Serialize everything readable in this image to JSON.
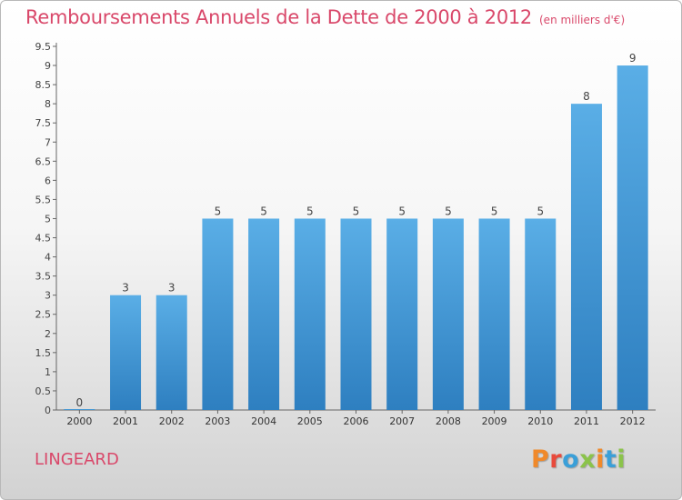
{
  "header": {
    "title": "Remboursements Annuels de la Dette de 2000 à 2012",
    "subtitle": "(en milliers d'€)"
  },
  "footer": {
    "commune": "LINGEARD",
    "logo": "Proxiti"
  },
  "colors": {
    "title": "#d9486a",
    "bar_top": "#5aaee6",
    "bar_bottom": "#2e7fc0",
    "logo_letters": [
      "#f0892a",
      "#e84a3c",
      "#3a9fd8",
      "#8bc34a",
      "#f0892a",
      "#3a9fd8",
      "#8bc34a"
    ]
  },
  "chart_data": {
    "type": "bar",
    "title": "Remboursements Annuels de la Dette de 2000 à 2012",
    "subtitle": "(en milliers d'€)",
    "categories": [
      "2000",
      "2001",
      "2002",
      "2003",
      "2004",
      "2005",
      "2006",
      "2007",
      "2008",
      "2009",
      "2010",
      "2011",
      "2012"
    ],
    "values": [
      0,
      3,
      3,
      5,
      5,
      5,
      5,
      5,
      5,
      5,
      5,
      8,
      9
    ],
    "ylim": [
      0,
      9.5
    ],
    "yticks": [
      "0",
      "0.5",
      "1",
      "1.5",
      "2",
      "2.5",
      "3",
      "3.5",
      "4",
      "4.5",
      "5",
      "5.5",
      "6",
      "6.5",
      "7",
      "7.5",
      "8",
      "8.5",
      "9",
      "9.5"
    ],
    "xlabel": "",
    "ylabel": "",
    "grid": false,
    "data_labels": true
  }
}
